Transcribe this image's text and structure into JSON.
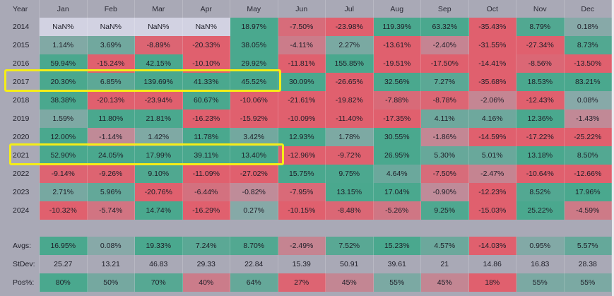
{
  "table": {
    "columns": [
      "Year",
      "Jan",
      "Feb",
      "Mar",
      "Apr",
      "May",
      "Jun",
      "Jul",
      "Aug",
      "Sep",
      "Oct",
      "Nov",
      "Dec"
    ],
    "rows": [
      {
        "label": "2014",
        "values": [
          "NaN%",
          "NaN%",
          "NaN%",
          "NaN%",
          "18.97%",
          "-7.50%",
          "-23.98%",
          "119.39%",
          "63.32%",
          "-35.43%",
          "8.79%",
          "0.18%"
        ]
      },
      {
        "label": "2015",
        "values": [
          "1.14%",
          "3.69%",
          "-8.89%",
          "-20.33%",
          "38.05%",
          "-4.11%",
          "2.27%",
          "-13.61%",
          "-2.40%",
          "-31.55%",
          "-27.34%",
          "8.73%"
        ]
      },
      {
        "label": "2016",
        "values": [
          "59.94%",
          "-15.24%",
          "42.15%",
          "-10.10%",
          "29.92%",
          "-11.81%",
          "155.85%",
          "-19.51%",
          "-17.50%",
          "-14.41%",
          "-8.56%",
          "-13.50%"
        ]
      },
      {
        "label": "2017",
        "values": [
          "20.30%",
          "6.85%",
          "139.69%",
          "41.33%",
          "45.52%",
          "30.09%",
          "-26.65%",
          "32.56%",
          "7.27%",
          "-35.68%",
          "18.53%",
          "83.21%"
        ]
      },
      {
        "label": "2018",
        "values": [
          "38.38%",
          "-20.13%",
          "-23.94%",
          "60.67%",
          "-10.06%",
          "-21.61%",
          "-19.82%",
          "-7.88%",
          "-8.78%",
          "-2.06%",
          "-12.43%",
          "0.08%"
        ]
      },
      {
        "label": "2019",
        "values": [
          "1.59%",
          "11.80%",
          "21.81%",
          "-16.23%",
          "-15.92%",
          "-10.09%",
          "-11.40%",
          "-17.35%",
          "4.11%",
          "4.16%",
          "12.36%",
          "-1.43%"
        ]
      },
      {
        "label": "2020",
        "values": [
          "12.00%",
          "-1.14%",
          "1.42%",
          "11.78%",
          "3.42%",
          "12.93%",
          "1.78%",
          "30.55%",
          "-1.86%",
          "-14.59%",
          "-17.22%",
          "-25.22%"
        ]
      },
      {
        "label": "2021",
        "values": [
          "52.90%",
          "24.05%",
          "17.99%",
          "39.11%",
          "13.40%",
          "-12.96%",
          "-9.72%",
          "26.95%",
          "5.30%",
          "5.01%",
          "13.18%",
          "8.50%"
        ]
      },
      {
        "label": "2022",
        "values": [
          "-9.14%",
          "-9.26%",
          "9.10%",
          "-11.09%",
          "-27.02%",
          "15.75%",
          "9.75%",
          "4.64%",
          "-7.50%",
          "-2.47%",
          "-10.64%",
          "-12.66%"
        ]
      },
      {
        "label": "2023",
        "values": [
          "2.71%",
          "5.96%",
          "-20.76%",
          "-6.44%",
          "-0.82%",
          "-7.95%",
          "13.15%",
          "17.04%",
          "-0.90%",
          "-12.23%",
          "8.52%",
          "17.96%"
        ]
      },
      {
        "label": "2024",
        "values": [
          "-10.32%",
          "-5.74%",
          "14.74%",
          "-16.29%",
          "0.27%",
          "-10.15%",
          "-8.48%",
          "-5.26%",
          "9.25%",
          "-15.03%",
          "25.22%",
          "-4.59%"
        ]
      }
    ],
    "summary": [
      {
        "label": "Avgs:",
        "values": [
          "16.95%",
          "0.08%",
          "19.33%",
          "7.24%",
          "8.70%",
          "-2.49%",
          "7.52%",
          "15.23%",
          "4.57%",
          "-14.03%",
          "0.95%",
          "5.57%"
        ]
      },
      {
        "label": "StDev:",
        "values": [
          "25.27",
          "13.21",
          "46.83",
          "29.33",
          "22.84",
          "15.39",
          "50.91",
          "39.61",
          "21",
          "14.86",
          "16.83",
          "28.38"
        ]
      },
      {
        "label": "Pos%:",
        "values": [
          "80%",
          "50%",
          "70%",
          "40%",
          "64%",
          "27%",
          "45%",
          "55%",
          "45%",
          "18%",
          "55%",
          "55%"
        ]
      }
    ]
  },
  "highlighted_rows": [
    "2017",
    "2021"
  ],
  "colors": {
    "background": "#a9a9b6",
    "positive": "#4aa88e",
    "negative": "#e0606e",
    "nan": "#d2d2e2",
    "highlight": "#f5ee17"
  }
}
